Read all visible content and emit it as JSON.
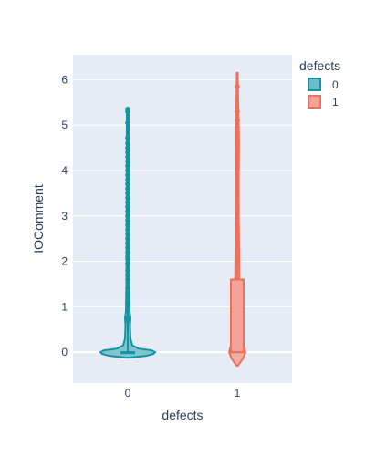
{
  "chart_data": {
    "type": "violin",
    "xlabel": "defects",
    "ylabel": "IOComment",
    "categories": [
      "0",
      "1"
    ],
    "ylim": [
      -0.68,
      6.55
    ],
    "yticks": [
      0,
      1,
      2,
      3,
      4,
      5,
      6
    ],
    "grid": true,
    "legend": {
      "title": "defects",
      "placement": "top-right"
    },
    "series": [
      {
        "name": "0",
        "category": "0",
        "color": "#1295a3",
        "fill": "#6dbdc6",
        "kde_extent": [
          -0.12,
          0.12
        ],
        "box": {
          "q1": 0,
          "median": 0,
          "q3": 0
        },
        "outliers": [
          0.7,
          0.75,
          1.05,
          1.1,
          1.3,
          1.4,
          1.6,
          1.7,
          1.8,
          1.95,
          2.05,
          2.1,
          2.2,
          2.3,
          2.4,
          2.5,
          2.6,
          2.7,
          2.8,
          2.9,
          3.0,
          3.1,
          3.2,
          3.3,
          3.4,
          3.5,
          3.6,
          3.7,
          3.8,
          3.9,
          4.0,
          4.1,
          4.2,
          4.3,
          4.4,
          4.5,
          4.6,
          4.72,
          5.05,
          5.3,
          5.35
        ],
        "max": 5.35
      },
      {
        "name": "1",
        "category": "1",
        "color": "#ee6f5b",
        "fill": "#f5a397",
        "kde_extent": [
          -0.3,
          6.15
        ],
        "box": {
          "q1": 0,
          "median": 0,
          "q3": 1.6
        },
        "outliers": [
          4.0,
          4.05,
          4.1,
          4.15,
          4.2,
          4.25,
          4.3,
          4.35,
          4.4,
          4.45,
          4.5,
          4.55,
          4.6,
          4.65,
          4.7,
          4.75,
          4.8,
          4.85,
          4.9,
          4.95,
          5.1,
          5.3,
          5.85
        ],
        "max": 5.85
      }
    ]
  }
}
